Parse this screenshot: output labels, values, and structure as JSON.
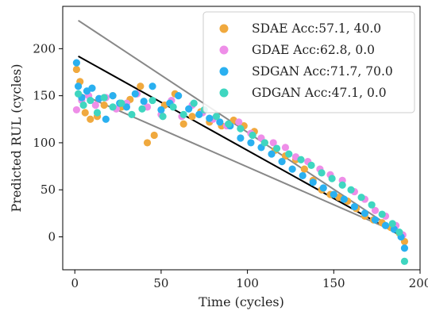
{
  "chart_data": {
    "type": "scatter",
    "xlabel": "Time (cycles)",
    "ylabel": "Predicted RUL (cycles)",
    "xlim": [
      -7,
      200
    ],
    "ylim": [
      -35,
      245
    ],
    "xticks": [
      "0",
      "50",
      "100",
      "150",
      "200"
    ],
    "yticks": [
      "0",
      "50",
      "100",
      "150",
      "200"
    ],
    "legend_position": "top-right",
    "grid": false,
    "series": [
      {
        "name": "SDAE Acc:57.1, 40.0",
        "color": "#f0a93e",
        "x": [
          1,
          3,
          6,
          9,
          13,
          17,
          22,
          27,
          32,
          38,
          42,
          46,
          52,
          58,
          63,
          68,
          73,
          78,
          85,
          92,
          98,
          104,
          110,
          116,
          122,
          128,
          133,
          138,
          143,
          148,
          153,
          158,
          163,
          168,
          173,
          178,
          183,
          188,
          191
        ],
        "y": [
          178,
          165,
          132,
          125,
          128,
          140,
          150,
          138,
          146,
          160,
          100,
          108,
          140,
          152,
          120,
          128,
          133,
          122,
          118,
          124,
          118,
          112,
          100,
          92,
          86,
          82,
          72,
          60,
          50,
          45,
          42,
          38,
          30,
          22,
          18,
          15,
          10,
          4,
          -5
        ]
      },
      {
        "name": "GDAE Acc:62.8, 0.0",
        "color": "#ee8ee8",
        "x": [
          1,
          4,
          8,
          12,
          18,
          24,
          30,
          36,
          42,
          50,
          56,
          62,
          68,
          74,
          80,
          88,
          95,
          102,
          108,
          115,
          122,
          128,
          135,
          142,
          148,
          155,
          162,
          168,
          174,
          180,
          186,
          190
        ],
        "y": [
          135,
          145,
          150,
          140,
          148,
          136,
          142,
          152,
          138,
          130,
          145,
          128,
          140,
          132,
          125,
          118,
          122,
          110,
          105,
          100,
          95,
          85,
          80,
          72,
          66,
          60,
          48,
          40,
          28,
          22,
          12,
          2
        ]
      },
      {
        "name": "SDGAN Acc:71.7, 70.0",
        "color": "#2ab0f0",
        "x": [
          1,
          2,
          4,
          7,
          10,
          14,
          18,
          22,
          26,
          30,
          35,
          40,
          45,
          50,
          55,
          60,
          66,
          72,
          78,
          84,
          90,
          96,
          102,
          108,
          114,
          120,
          126,
          132,
          138,
          144,
          150,
          156,
          162,
          168,
          174,
          180,
          185,
          189,
          191
        ],
        "y": [
          185,
          160,
          148,
          155,
          158,
          147,
          125,
          150,
          142,
          138,
          152,
          144,
          160,
          135,
          142,
          150,
          136,
          130,
          126,
          122,
          118,
          105,
          100,
          95,
          88,
          80,
          72,
          65,
          58,
          52,
          45,
          40,
          32,
          25,
          18,
          12,
          8,
          0,
          -12
        ]
      },
      {
        "name": "GDGAN Acc:47.1, 0.0",
        "color": "#3fd6c0",
        "x": [
          2,
          5,
          9,
          13,
          17,
          22,
          27,
          33,
          39,
          45,
          51,
          57,
          63,
          69,
          75,
          82,
          89,
          96,
          103,
          110,
          117,
          124,
          131,
          137,
          143,
          149,
          155,
          160,
          166,
          172,
          178,
          184,
          188,
          191
        ],
        "y": [
          152,
          140,
          145,
          132,
          148,
          138,
          142,
          130,
          136,
          145,
          128,
          138,
          130,
          142,
          135,
          128,
          120,
          115,
          108,
          100,
          94,
          88,
          82,
          76,
          68,
          62,
          55,
          50,
          42,
          34,
          24,
          14,
          5,
          -26
        ]
      }
    ],
    "lines": [
      {
        "color": "#888888",
        "x": [
          2,
          190
        ],
        "y": [
          230,
          2
        ]
      },
      {
        "color": "#000000",
        "x": [
          2,
          190
        ],
        "y": [
          192,
          0
        ]
      },
      {
        "color": "#888888",
        "x": [
          2,
          190
        ],
        "y": [
          153,
          2
        ]
      }
    ]
  }
}
